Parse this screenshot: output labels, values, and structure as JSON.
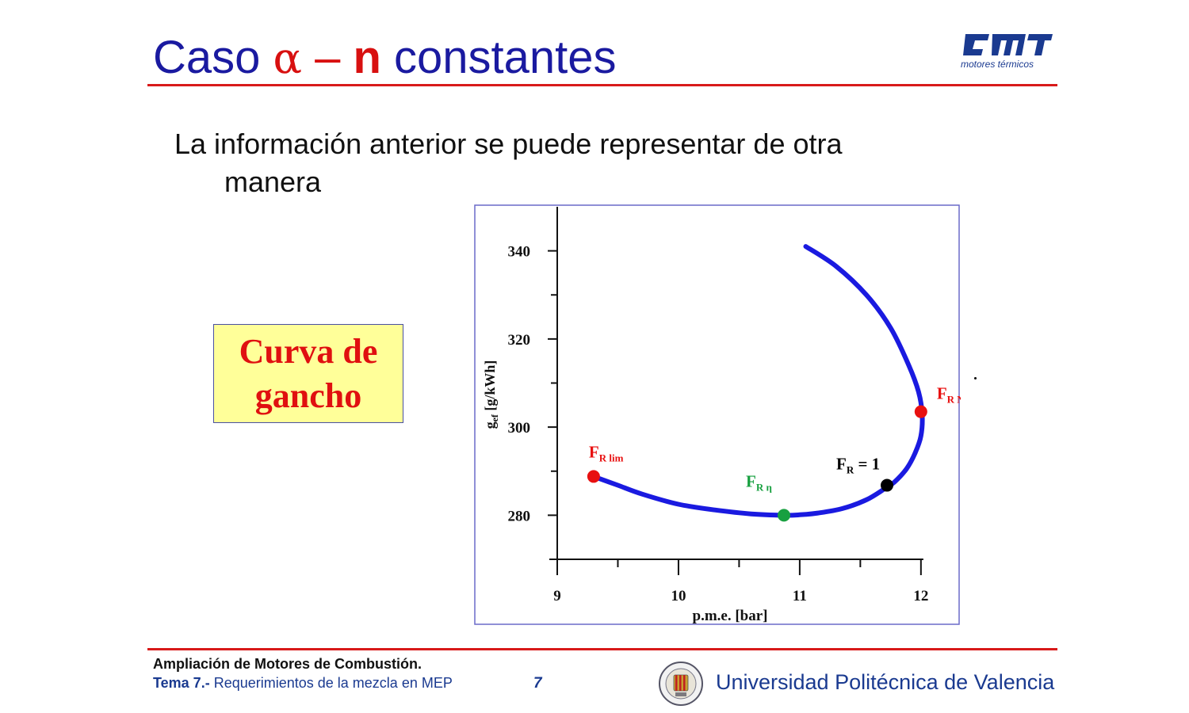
{
  "slide": {
    "title_prefix": "Caso ",
    "title_alpha": "α",
    "title_dash": " – ",
    "title_n": "n",
    "title_suffix": " constantes",
    "logo_caption": "motores térmicos",
    "body_line1": "La información anterior se puede representar de otra",
    "body_line2": "manera",
    "callout_line1": "Curva de",
    "callout_line2": "gancho",
    "accent_color": "#d81a1a",
    "title_color": "#1a1aa0"
  },
  "footer": {
    "course": "Ampliación de Motores de Combustión.",
    "topic_prefix": "Tema 7.-",
    "topic_text": " Requerimientos de la mezcla en MEP",
    "page": "7",
    "university": "Universidad Politécnica de Valencia"
  },
  "chart_data": {
    "type": "line",
    "xlabel": "p.m.e. [bar]",
    "ylabel_main": "g",
    "ylabel_sub": "ef",
    "ylabel_unit": " [g/kWh]",
    "xlim": [
      9,
      12.4
    ],
    "ylim": [
      270,
      350
    ],
    "xticks": [
      9,
      10,
      11,
      12
    ],
    "yticks": [
      280,
      300,
      320,
      340
    ],
    "x_minor": [
      9.5,
      10.5,
      11.5
    ],
    "y_minor": [
      290,
      310,
      330
    ],
    "grid": false,
    "line_color": "#1a1ae0",
    "series": [
      {
        "x": [
          11.05,
          11.3,
          11.55,
          11.75,
          11.9,
          11.98,
          12.01,
          12.0,
          11.95,
          11.88,
          11.78,
          11.7,
          11.55,
          11.35,
          11.15,
          11.0,
          10.87,
          10.6,
          10.3,
          10.0,
          9.7,
          9.5,
          9.3
        ],
        "y": [
          341,
          336.5,
          330,
          322.5,
          314,
          308,
          303,
          298,
          294,
          290.5,
          287.5,
          286,
          283.5,
          281.5,
          280.5,
          280.1,
          280,
          280.3,
          281.2,
          282.5,
          284.8,
          286.8,
          288.8
        ]
      }
    ],
    "points": [
      {
        "label_main": "F",
        "label_sub": "R lim",
        "x": 9.3,
        "y": 288.8,
        "color": "#e81010",
        "label_dx": -6,
        "label_dy": -24
      },
      {
        "label_main": "F",
        "label_sub": "R η",
        "x": 10.87,
        "y": 280,
        "color": "#18a040",
        "label_dx": -48,
        "label_dy": -36
      },
      {
        "label_main": "F",
        "label_sub": "R",
        "label_suffix": " = 1",
        "x": 11.72,
        "y": 286.8,
        "color": "#000000",
        "label_dx": -64,
        "label_dy": -20
      },
      {
        "label_main": "F",
        "label_sub": "R N",
        "x": 12.0,
        "y": 303.5,
        "color": "#e81010",
        "label_dx": 20,
        "label_dy": -16
      }
    ]
  }
}
